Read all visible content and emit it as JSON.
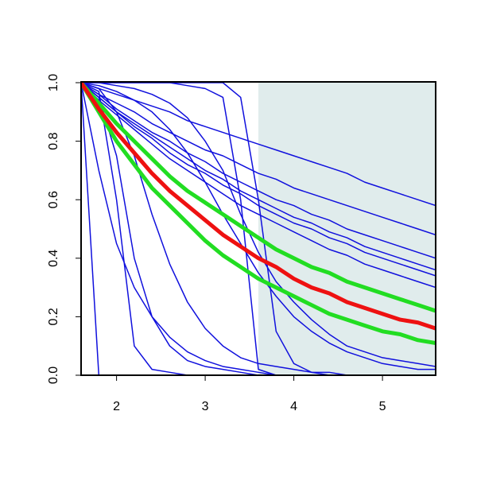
{
  "chart_data": {
    "type": "line",
    "x": [
      1.6,
      1.8,
      2.0,
      2.2,
      2.4,
      2.6,
      2.8,
      3.0,
      3.2,
      3.4,
      3.6,
      3.8,
      4.0,
      4.2,
      4.4,
      4.6,
      4.8,
      5.0,
      5.2,
      5.4,
      5.6
    ],
    "xlim": [
      1.6,
      5.6
    ],
    "xticks": [
      2,
      3,
      4,
      5
    ],
    "ylim": [
      0,
      1
    ],
    "yticks": [
      {
        "value": 0,
        "label": "0.0"
      },
      {
        "value": 0.2,
        "label": "0.2"
      },
      {
        "value": 0.4,
        "label": "0.4"
      },
      {
        "value": 0.6,
        "label": "0.6"
      },
      {
        "value": 0.8,
        "label": "0.8"
      },
      {
        "value": 1,
        "label": "1.0"
      }
    ],
    "shaded_x": [
      3.6,
      5.6
    ],
    "shade_color": "#e0ecec",
    "series": [
      {
        "color": "#1010dd",
        "width": 1.5,
        "values": [
          1,
          0.98,
          0.96,
          0.94,
          0.92,
          0.9,
          0.87,
          0.85,
          0.83,
          0.81,
          0.79,
          0.77,
          0.75,
          0.73,
          0.71,
          0.69,
          0.66,
          0.64,
          0.62,
          0.6,
          0.58
        ]
      },
      {
        "color": "#1010dd",
        "width": 1.5,
        "values": [
          1,
          0.96,
          0.93,
          0.9,
          0.86,
          0.83,
          0.8,
          0.77,
          0.75,
          0.72,
          0.69,
          0.67,
          0.64,
          0.62,
          0.6,
          0.58,
          0.56,
          0.54,
          0.52,
          0.5,
          0.48
        ]
      },
      {
        "color": "#1010dd",
        "width": 1.5,
        "values": [
          1,
          0.96,
          0.91,
          0.87,
          0.83,
          0.8,
          0.76,
          0.73,
          0.69,
          0.66,
          0.63,
          0.6,
          0.58,
          0.55,
          0.53,
          0.5,
          0.48,
          0.46,
          0.44,
          0.42,
          0.4
        ]
      },
      {
        "color": "#1010dd",
        "width": 1.5,
        "values": [
          1,
          0.95,
          0.9,
          0.86,
          0.82,
          0.78,
          0.74,
          0.7,
          0.67,
          0.63,
          0.6,
          0.57,
          0.54,
          0.52,
          0.49,
          0.47,
          0.44,
          0.42,
          0.4,
          0.38,
          0.36
        ]
      },
      {
        "color": "#1010dd",
        "width": 1.5,
        "values": [
          1,
          0.95,
          0.9,
          0.85,
          0.81,
          0.76,
          0.72,
          0.69,
          0.65,
          0.62,
          0.58,
          0.55,
          0.52,
          0.5,
          0.47,
          0.45,
          0.42,
          0.4,
          0.38,
          0.36,
          0.34
        ]
      },
      {
        "color": "#1010dd",
        "width": 1.5,
        "values": [
          1,
          0.94,
          0.89,
          0.84,
          0.79,
          0.74,
          0.7,
          0.66,
          0.62,
          0.58,
          0.55,
          0.52,
          0.49,
          0.46,
          0.43,
          0.41,
          0.38,
          0.36,
          0.34,
          0.32,
          0.3
        ]
      },
      {
        "color": "#1010dd",
        "width": 1.5,
        "values": [
          1,
          0,
          0,
          0,
          0,
          0,
          0,
          0,
          0,
          0,
          0,
          0,
          0,
          0,
          0,
          0,
          0,
          0,
          0,
          0,
          0
        ]
      },
      {
        "color": "#1010dd",
        "width": 1.5,
        "values": [
          1,
          0.97,
          0.6,
          0.1,
          0.02,
          0.01,
          0,
          0,
          0,
          0,
          0,
          0,
          0,
          0,
          0,
          0,
          0,
          0,
          0,
          0,
          0
        ]
      },
      {
        "color": "#1010dd",
        "width": 1.5,
        "values": [
          1,
          0.95,
          0.75,
          0.4,
          0.2,
          0.1,
          0.05,
          0.03,
          0.02,
          0.01,
          0,
          0,
          0,
          0,
          0,
          0,
          0,
          0,
          0,
          0,
          0
        ]
      },
      {
        "color": "#1010dd",
        "width": 1.5,
        "values": [
          1,
          0.7,
          0.45,
          0.3,
          0.2,
          0.13,
          0.08,
          0.05,
          0.03,
          0.02,
          0.01,
          0,
          0,
          0,
          0,
          0,
          0,
          0,
          0,
          0,
          0
        ]
      },
      {
        "color": "#1010dd",
        "width": 1.5,
        "values": [
          1,
          1,
          1,
          1,
          1,
          1,
          0.99,
          0.98,
          0.95,
          0.6,
          0.02,
          0,
          0,
          0,
          0,
          0,
          0,
          0,
          0,
          0,
          0
        ]
      },
      {
        "color": "#1010dd",
        "width": 1.5,
        "values": [
          1,
          1,
          1,
          1,
          1,
          1,
          1,
          1,
          1,
          0.95,
          0.6,
          0.15,
          0.04,
          0.01,
          0,
          0,
          0,
          0,
          0,
          0,
          0
        ]
      },
      {
        "color": "#1010dd",
        "width": 1.5,
        "values": [
          1,
          0.99,
          0.97,
          0.94,
          0.9,
          0.84,
          0.76,
          0.66,
          0.55,
          0.45,
          0.35,
          0.27,
          0.2,
          0.15,
          0.11,
          0.08,
          0.06,
          0.04,
          0.03,
          0.02,
          0.02
        ]
      },
      {
        "color": "#1010dd",
        "width": 1.5,
        "values": [
          1,
          1,
          0.99,
          0.98,
          0.96,
          0.93,
          0.88,
          0.8,
          0.7,
          0.55,
          0.42,
          0.32,
          0.25,
          0.19,
          0.14,
          0.1,
          0.08,
          0.06,
          0.05,
          0.04,
          0.03
        ]
      },
      {
        "color": "#1010dd",
        "width": 1.5,
        "values": [
          1,
          0.98,
          0.9,
          0.75,
          0.55,
          0.38,
          0.25,
          0.16,
          0.1,
          0.06,
          0.04,
          0.03,
          0.02,
          0.01,
          0.01,
          0,
          0,
          0,
          0,
          0,
          0
        ]
      },
      {
        "color": "#22dd22",
        "width": 5,
        "values": [
          1,
          0.93,
          0.86,
          0.8,
          0.74,
          0.68,
          0.63,
          0.59,
          0.55,
          0.51,
          0.47,
          0.43,
          0.4,
          0.37,
          0.35,
          0.32,
          0.3,
          0.28,
          0.26,
          0.24,
          0.22
        ]
      },
      {
        "color": "#22dd22",
        "width": 5,
        "values": [
          1,
          0.9,
          0.8,
          0.72,
          0.64,
          0.58,
          0.52,
          0.46,
          0.41,
          0.37,
          0.33,
          0.3,
          0.27,
          0.24,
          0.21,
          0.19,
          0.17,
          0.15,
          0.14,
          0.12,
          0.11
        ]
      },
      {
        "color": "#ee1111",
        "width": 5,
        "values": [
          1,
          0.91,
          0.83,
          0.76,
          0.69,
          0.63,
          0.58,
          0.53,
          0.48,
          0.44,
          0.4,
          0.37,
          0.33,
          0.3,
          0.28,
          0.25,
          0.23,
          0.21,
          0.19,
          0.18,
          0.16
        ]
      }
    ]
  }
}
